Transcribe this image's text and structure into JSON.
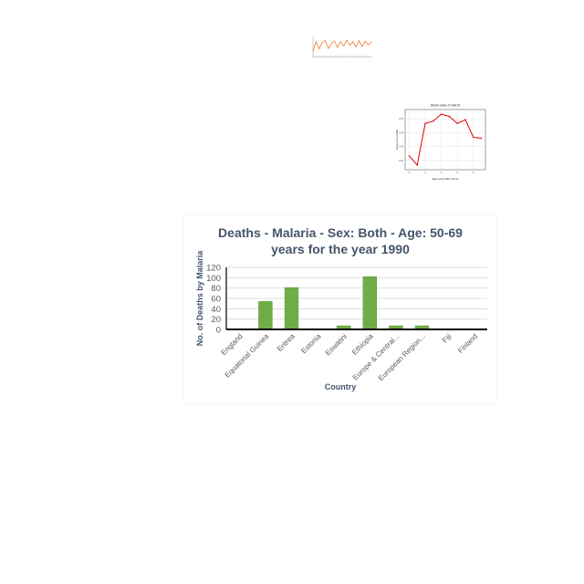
{
  "colors": {
    "main_bar": "#70ad47",
    "main_bar_dark": "#5b9c38",
    "stock_line": "#e00000",
    "small_line": "#ed7d31"
  },
  "chart_data": [
    {
      "type": "line",
      "title": "",
      "xlabel": "",
      "ylabel": "",
      "x": [
        1,
        2,
        3,
        4,
        5,
        6,
        7,
        8,
        9,
        10,
        11,
        12,
        13,
        14,
        15,
        16,
        17,
        18,
        19,
        20
      ],
      "series": [
        {
          "values": [
            1.0,
            3.0,
            1.5,
            2.8,
            3.2,
            1.6,
            2.6,
            3.1,
            1.8,
            3.0,
            2.1,
            3.3,
            2.2,
            3.0,
            1.9,
            3.2,
            2.0,
            3.1,
            2.3,
            3.0
          ]
        }
      ],
      "ylim": [
        0,
        4
      ],
      "grid": false
    },
    {
      "type": "line",
      "title": "Stock price of SACH",
      "xlabel": "Days since 2017-04-01",
      "ylabel": "Stock price (USD)",
      "x": [
        0,
        1,
        2,
        3,
        4,
        5,
        6,
        7,
        8,
        9
      ],
      "series": [
        {
          "values": [
            0.53,
            0.51,
            0.6,
            0.605,
            0.62,
            0.615,
            0.6,
            0.608,
            0.57,
            0.568
          ]
        }
      ],
      "xlim": [
        -0.5,
        9.5
      ],
      "ylim": [
        0.5,
        0.63
      ],
      "xticks": [
        0,
        2,
        4,
        6,
        8
      ],
      "yticks": [
        0.52,
        0.55,
        0.58,
        0.61
      ],
      "grid": true
    },
    {
      "type": "bar",
      "title": "Deaths - Malaria - Sex: Both - Age: 50-69 years for the year 1990",
      "title_lines": [
        "Deaths - Malaria - Sex: Both - Age: 50-69",
        "years for the year 1990"
      ],
      "xlabel": "Country",
      "ylabel": "No. of Deaths by Malaria",
      "categories": [
        "England",
        "Equatorial Guinea",
        "Eritrea",
        "Estonia",
        "Eswatini",
        "Ethiopia",
        "Europe & Central...",
        "European Region...",
        "Fiji",
        "Finland"
      ],
      "values": [
        0,
        54,
        81,
        0,
        7,
        102,
        7,
        7,
        0,
        0
      ],
      "ylim": [
        0,
        120
      ],
      "yticks": [
        0,
        20,
        40,
        60,
        80,
        100,
        120
      ],
      "grid": true
    }
  ]
}
